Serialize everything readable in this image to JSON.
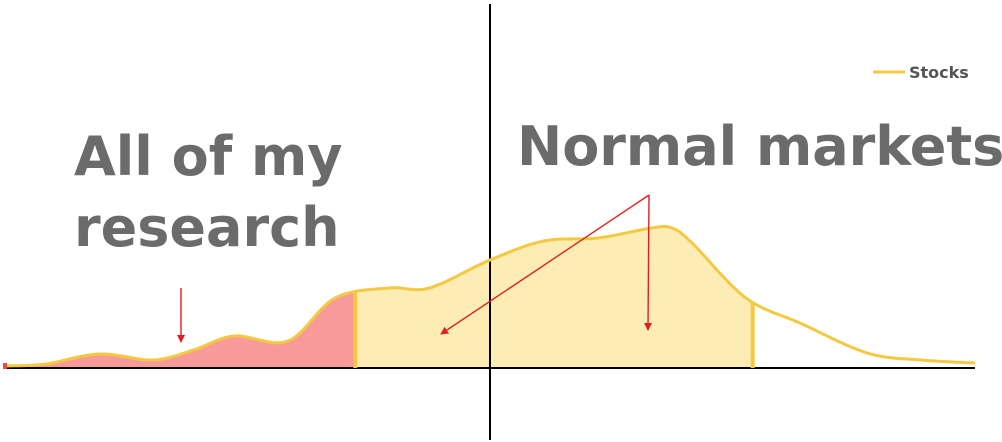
{
  "chart_data": {
    "type": "area",
    "title": "",
    "xlabel": "",
    "ylabel": "",
    "series": [
      {
        "name": "Stocks",
        "color": "#f5c842",
        "x": [
          -3.6,
          -3.3,
          -2.9,
          -2.5,
          -2.2,
          -1.9,
          -1.5,
          -1.15,
          -0.75,
          -0.45,
          0.0,
          0.4,
          0.8,
          1.2,
          1.35,
          1.5,
          1.9,
          2.3,
          2.8,
          3.2,
          3.6
        ],
        "values": [
          0.02,
          0.04,
          0.14,
          0.08,
          0.18,
          0.32,
          0.27,
          0.7,
          0.8,
          0.8,
          1.08,
          1.27,
          1.3,
          1.4,
          1.4,
          1.25,
          0.7,
          0.45,
          0.15,
          0.08,
          0.05
        ]
      }
    ],
    "regions": [
      {
        "name": "tail",
        "from": -3.6,
        "to": -1.0,
        "fill": "#f99a9a"
      },
      {
        "name": "normal",
        "from": -1.0,
        "to": 1.95,
        "fill": "#fdedb5"
      }
    ],
    "xlim": [
      -3.6,
      3.6
    ],
    "ylim": [
      -0.3,
      1.9
    ],
    "grid": false,
    "legend": {
      "position": "top-right",
      "entries": [
        "Stocks"
      ]
    },
    "annotations": [
      {
        "lines": [
          "All of my",
          "research"
        ]
      },
      {
        "lines": [
          "Normal markets"
        ]
      }
    ]
  }
}
